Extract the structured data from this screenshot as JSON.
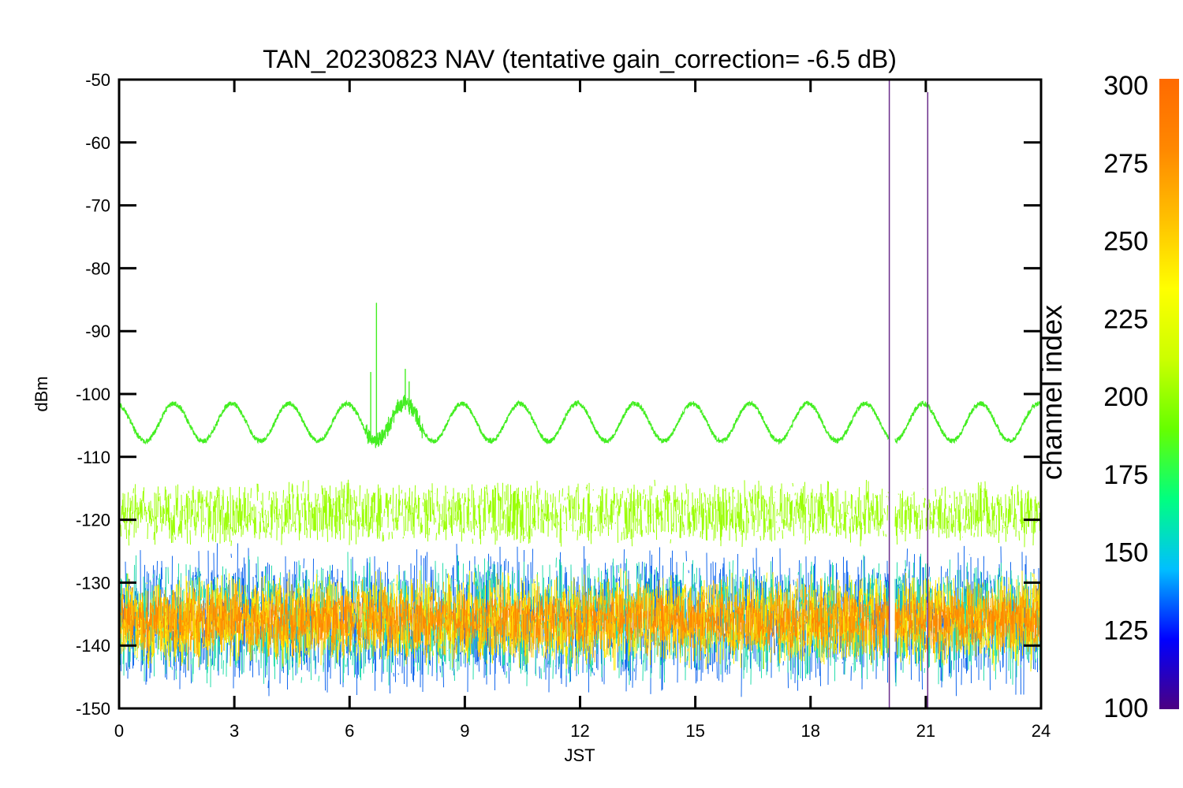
{
  "chart_data": {
    "type": "line",
    "title": "TAN_20230823 NAV (tentative gain_correction= -6.5 dB)",
    "xlabel": "JST",
    "ylabel": "dBm",
    "xlim": [
      0,
      24
    ],
    "ylim": [
      -150,
      -50
    ],
    "xticks": [
      "0",
      "3",
      "6",
      "9",
      "12",
      "15",
      "18",
      "21",
      "24"
    ],
    "yticks": [
      "-50",
      "-60",
      "-70",
      "-80",
      "-90",
      "-100",
      "-110",
      "-120",
      "-130",
      "-140",
      "-150"
    ],
    "grid": false,
    "colorbar": {
      "label": "channel index",
      "range": [
        100,
        300
      ],
      "ticks": [
        "300",
        "275",
        "250",
        "225",
        "200",
        "175",
        "150",
        "125",
        "100"
      ],
      "colors": [
        "#4b0082",
        "#0000ff",
        "#00bfff",
        "#00ff80",
        "#66ff00",
        "#ccff00",
        "#ffff00",
        "#ffc000",
        "#ff8800",
        "#ff6a00"
      ]
    },
    "series": [
      {
        "channel_index": 240,
        "color": "#44ee22",
        "description_values": "sinusoidal oscillation between about -107.5 and -101.5 dBm, period about 1.5 h",
        "mean": -104.5,
        "amplitude": 3.0,
        "period_hours": 1.5,
        "noise": 0.4,
        "spikes": [
          {
            "x": 6.55,
            "y": -96.5
          },
          {
            "x": 6.7,
            "y": -85.5
          },
          {
            "x": 7.45,
            "y": -96
          },
          {
            "x": 7.55,
            "y": -98
          }
        ]
      },
      {
        "channel_index": 255,
        "color": "#99ff00",
        "band": [
          -125,
          -114
        ],
        "center": -119
      },
      {
        "channel_index": 150,
        "color": "#1066ee",
        "band": [
          -149,
          -124
        ],
        "center": -136
      },
      {
        "channel_index": 200,
        "color": "#22ddaa",
        "band": [
          -147,
          -125
        ],
        "center": -136
      },
      {
        "channel_index": 270,
        "color": "#ffee00",
        "band": [
          -144,
          -127
        ],
        "center": -136
      },
      {
        "channel_index": 290,
        "color": "#ffb000",
        "band": [
          -142,
          -128
        ],
        "center": -136
      },
      {
        "channel_index": 300,
        "color": "#ff8800",
        "band": [
          -140,
          -131
        ],
        "center": -136
      }
    ],
    "data_gap": {
      "x_start": 20.05,
      "x_end": 20.2
    },
    "vertical_lines": [
      {
        "x": 20.05,
        "y_from": -150,
        "y_to": -50,
        "color": "#6a2b8a"
      },
      {
        "x": 21.05,
        "y_from": -150,
        "y_to": -52,
        "color": "#6a2b8a"
      }
    ]
  }
}
